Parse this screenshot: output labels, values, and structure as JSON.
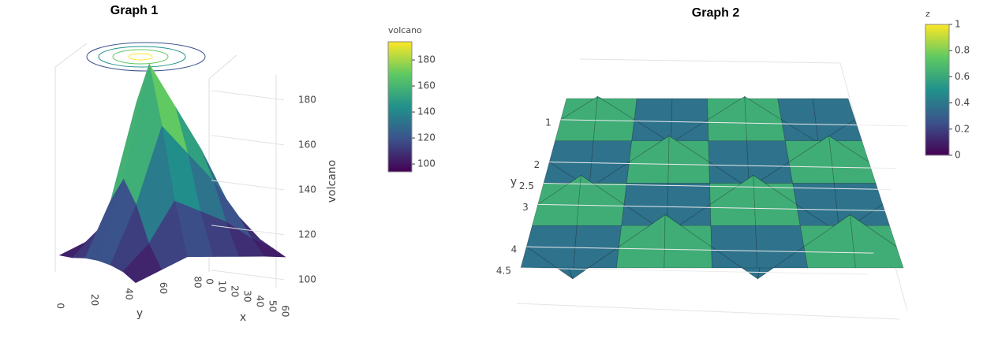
{
  "chart_data": [
    {
      "type": "surface",
      "title": "Graph 1",
      "xaxis_title": "x",
      "yaxis_title": "y",
      "zaxis_title": "volcano",
      "x": [
        0,
        10,
        20,
        30,
        40,
        50,
        60
      ],
      "y": [
        0,
        15,
        30,
        45,
        60,
        75,
        87
      ],
      "z": [
        [
          100,
          101,
          103,
          104,
          104,
          103,
          100
        ],
        [
          104,
          112,
          128,
          140,
          130,
          114,
          104
        ],
        [
          108,
          130,
          172,
          192,
          165,
          132,
          108
        ],
        [
          108,
          128,
          160,
          170,
          150,
          125,
          106
        ],
        [
          106,
          120,
          140,
          148,
          135,
          118,
          104
        ],
        [
          102,
          110,
          118,
          122,
          116,
          108,
          102
        ],
        [
          100,
          102,
          104,
          106,
          104,
          102,
          100
        ]
      ],
      "xticks": [
        0,
        10,
        20,
        30,
        40,
        50,
        60
      ],
      "yticks": [
        0,
        20,
        40,
        60,
        80
      ],
      "zticks": [
        100,
        120,
        140,
        160,
        180
      ],
      "colorscale": [
        "#440154",
        "#3b528b",
        "#21918c",
        "#5ec962",
        "#fde725"
      ],
      "colorbar": {
        "title": "volcano",
        "clim": [
          94,
          194
        ],
        "ticks": [
          100,
          120,
          140,
          160,
          180
        ]
      }
    },
    {
      "type": "surface",
      "title": "Graph 2",
      "yaxis_title": "y",
      "x": [
        0,
        0.5,
        1,
        1.5,
        2,
        2.5,
        3,
        3.5,
        4
      ],
      "y": [
        0.5,
        1,
        1.5,
        2,
        2.5,
        3,
        3.5,
        4,
        4.5
      ],
      "z": [
        [
          0.5,
          0.5,
          0.5,
          0.5,
          0.5,
          0.5,
          0.5,
          0.5,
          0.5
        ],
        [
          0.5,
          1,
          0.5,
          0,
          0.5,
          1,
          0.5,
          0,
          0.5
        ],
        [
          0.5,
          0.5,
          0.5,
          0.5,
          0.5,
          0.5,
          0.5,
          0.5,
          0.5
        ],
        [
          0.5,
          0,
          0.5,
          1,
          0.5,
          0,
          0.5,
          1,
          0.5
        ],
        [
          0.5,
          0.5,
          0.5,
          0.5,
          0.5,
          0.5,
          0.5,
          0.5,
          0.5
        ],
        [
          0.5,
          1,
          0.5,
          0,
          0.5,
          1,
          0.5,
          0,
          0.5
        ],
        [
          0.5,
          0.5,
          0.5,
          0.5,
          0.5,
          0.5,
          0.5,
          0.5,
          0.5
        ],
        [
          0.5,
          0,
          0.5,
          1,
          0.5,
          0,
          0.5,
          1,
          0.5
        ],
        [
          0.5,
          0.5,
          0.5,
          0.5,
          0.5,
          0.5,
          0.5,
          0.5,
          0.5
        ]
      ],
      "yticks": [
        1,
        2,
        2.5,
        3,
        4,
        4.5
      ],
      "colorscale": [
        "#440154",
        "#3b528b",
        "#21918c",
        "#5ec962",
        "#fde725"
      ],
      "colorbar": {
        "title": "z",
        "clim": [
          0,
          1
        ],
        "ticks": [
          0,
          0.2,
          0.4,
          0.6,
          0.8,
          1
        ]
      }
    }
  ]
}
